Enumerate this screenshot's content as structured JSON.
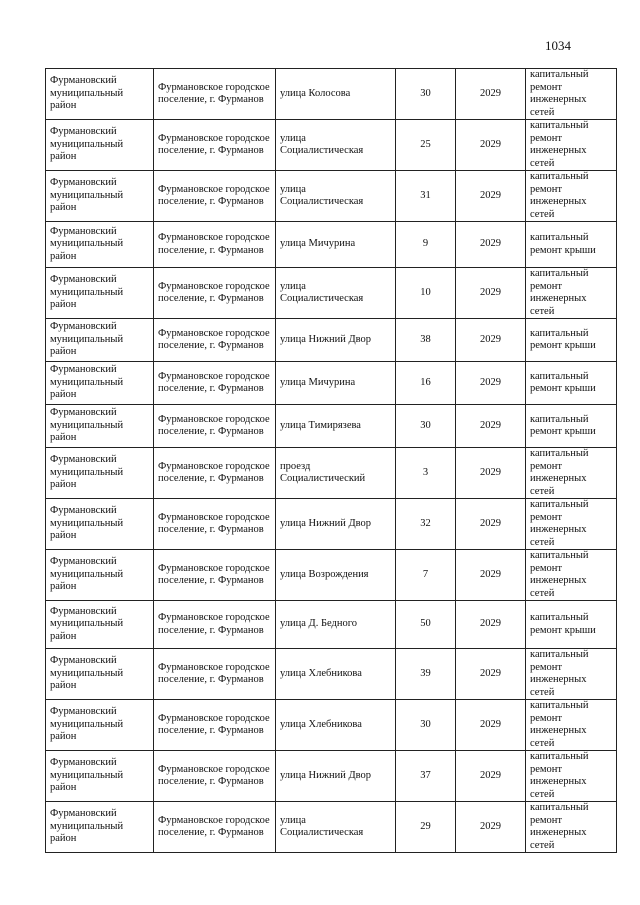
{
  "page_number": "1034",
  "rows": [
    {
      "district": "Фурмановский муниципальный район",
      "settlement": "Фурмановское городское поселение, г. Фурманов",
      "street": "улица Колосова",
      "house": "30",
      "year": "2029",
      "work": "капитальный ремонт инженерных сетей"
    },
    {
      "district": "Фурмановский муниципальный район",
      "settlement": "Фурмановское городское поселение, г. Фурманов",
      "street": "улица Социалистическая",
      "house": "25",
      "year": "2029",
      "work": "капитальный ремонт инженерных сетей"
    },
    {
      "district": "Фурмановский муниципальный район",
      "settlement": "Фурмановское городское поселение, г. Фурманов",
      "street": "улица Социалистическая",
      "house": "31",
      "year": "2029",
      "work": "капитальный ремонт инженерных сетей"
    },
    {
      "district": "Фурмановский муниципальный район",
      "settlement": "Фурмановское городское поселение, г. Фурманов",
      "street": "улица Мичурина",
      "house": "9",
      "year": "2029",
      "work": "капитальный ремонт крыши"
    },
    {
      "district": "Фурмановский муниципальный район",
      "settlement": "Фурмановское городское поселение, г. Фурманов",
      "street": "улица Социалистическая",
      "house": "10",
      "year": "2029",
      "work": "капитальный ремонт инженерных сетей"
    },
    {
      "district": "Фурмановский муниципальный район",
      "settlement": "Фурмановское городское поселение, г. Фурманов",
      "street": "улица Нижний Двор",
      "house": "38",
      "year": "2029",
      "work": "капитальный ремонт крыши"
    },
    {
      "district": "Фурмановский муниципальный район",
      "settlement": "Фурмановское городское поселение, г. Фурманов",
      "street": "улица Мичурина",
      "house": "16",
      "year": "2029",
      "work": "капитальный ремонт крыши"
    },
    {
      "district": "Фурмановский муниципальный район",
      "settlement": "Фурмановское городское поселение, г. Фурманов",
      "street": "улица Тимирязева",
      "house": "30",
      "year": "2029",
      "work": "капитальный ремонт крыши"
    },
    {
      "district": "Фурмановский муниципальный район",
      "settlement": "Фурмановское городское поселение, г. Фурманов",
      "street": "проезд Социалистический",
      "house": "3",
      "year": "2029",
      "work": "капитальный ремонт инженерных сетей"
    },
    {
      "district": "Фурмановский муниципальный район",
      "settlement": "Фурмановское городское поселение, г. Фурманов",
      "street": "улица Нижний Двор",
      "house": "32",
      "year": "2029",
      "work": "капитальный ремонт инженерных сетей"
    },
    {
      "district": "Фурмановский муниципальный район",
      "settlement": "Фурмановское городское поселение, г. Фурманов",
      "street": "улица Возрождения",
      "house": "7",
      "year": "2029",
      "work": "капитальный ремонт инженерных сетей"
    },
    {
      "district": "Фурмановский муниципальный район",
      "settlement": "Фурмановское городское поселение, г. Фурманов",
      "street": "улица Д. Бедного",
      "house": "50",
      "year": "2029",
      "work": "капитальный ремонт крыши"
    },
    {
      "district": "Фурмановский муниципальный район",
      "settlement": "Фурмановское городское поселение, г. Фурманов",
      "street": "улица Хлебникова",
      "house": "39",
      "year": "2029",
      "work": "капитальный ремонт инженерных сетей"
    },
    {
      "district": "Фурмановский муниципальный район",
      "settlement": "Фурмановское городское поселение, г. Фурманов",
      "street": "улица Хлебникова",
      "house": "30",
      "year": "2029",
      "work": "капитальный ремонт инженерных сетей"
    },
    {
      "district": "Фурмановский муниципальный район",
      "settlement": "Фурмановское городское поселение, г. Фурманов",
      "street": "улица Нижний Двор",
      "house": "37",
      "year": "2029",
      "work": "капитальный ремонт инженерных сетей"
    },
    {
      "district": "Фурмановский муниципальный район",
      "settlement": "Фурмановское городское поселение, г. Фурманов",
      "street": "улица Социалистическая",
      "house": "29",
      "year": "2029",
      "work": "капитальный ремонт инженерных сетей"
    }
  ]
}
